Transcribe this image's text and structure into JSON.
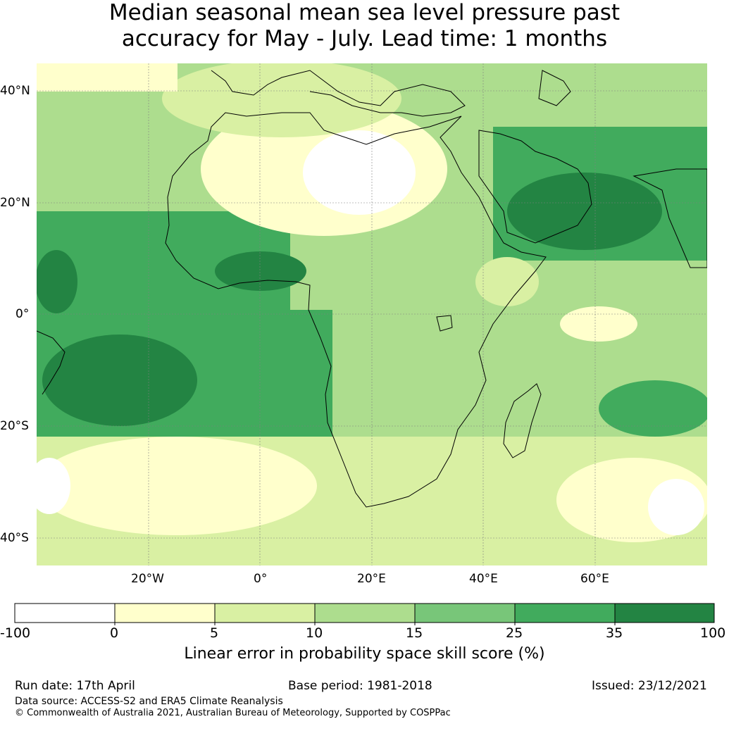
{
  "title": {
    "line1": "Median seasonal mean sea level pressure past",
    "line2": "accuracy for May - July. Lead time: 1 months"
  },
  "map": {
    "lat_labels": [
      "40°N",
      "20°N",
      "0°",
      "20°S",
      "40°S"
    ],
    "lon_labels": [
      "20°W",
      "0°",
      "20°E",
      "40°E",
      "60°E"
    ],
    "colors": {
      "c1": "#ffffff",
      "c2": "#ffffcc",
      "c3": "#d9f0a3",
      "c4": "#addd8e",
      "c5": "#78c679",
      "c6": "#41ab5d",
      "c7": "#238443"
    }
  },
  "colorbar": {
    "ticks": [
      "-100",
      "0",
      "5",
      "10",
      "15",
      "25",
      "35",
      "100"
    ],
    "label": "Linear error in probability space skill score (%)"
  },
  "footer": {
    "run_date": "Run date: 17th April",
    "base_period": "Base period: 1981-2018",
    "issued": "Issued: 23/12/2021",
    "data_source": "Data source: ACCESS-S2 and ERA5 Climate Reanalysis",
    "copyright": "© Commonwealth of Australia 2021, Australian Bureau of Meteorology, Supported by COSPPac"
  }
}
